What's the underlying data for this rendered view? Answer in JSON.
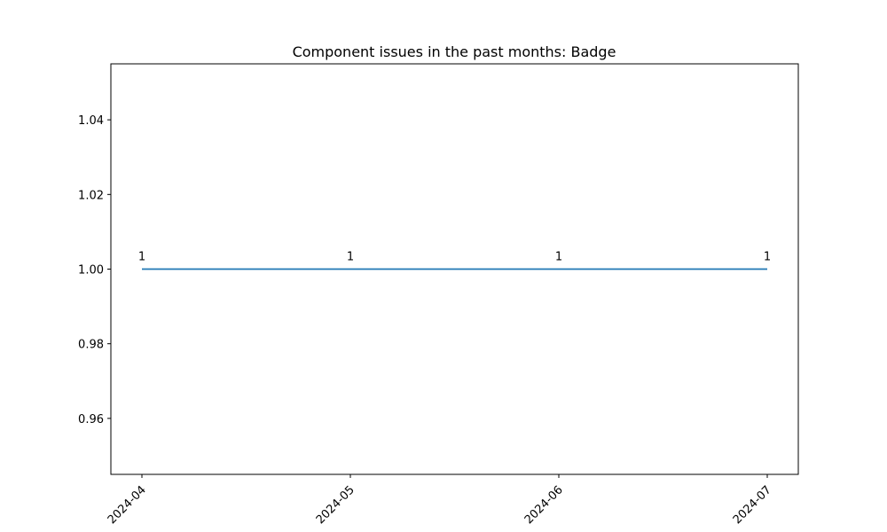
{
  "chart_data": {
    "type": "line",
    "title": "Component issues in the past months: Badge",
    "xlabel": "",
    "ylabel": "",
    "x": [
      "2024-04",
      "2024-05",
      "2024-06",
      "2024-07"
    ],
    "series": [
      {
        "values": [
          1,
          1,
          1,
          1
        ]
      }
    ],
    "data_labels": [
      "1",
      "1",
      "1",
      "1"
    ],
    "ylim": [
      0.945,
      1.055
    ],
    "yticks": [
      0.96,
      0.98,
      1.0,
      1.02,
      1.04
    ],
    "ytick_labels": [
      "0.96",
      "0.98",
      "1.00",
      "1.02",
      "1.04"
    ],
    "xtick_labels": [
      "2024-04",
      "2024-05",
      "2024-06",
      "2024-07"
    ],
    "grid": false,
    "line_color": "#1f77b4"
  }
}
